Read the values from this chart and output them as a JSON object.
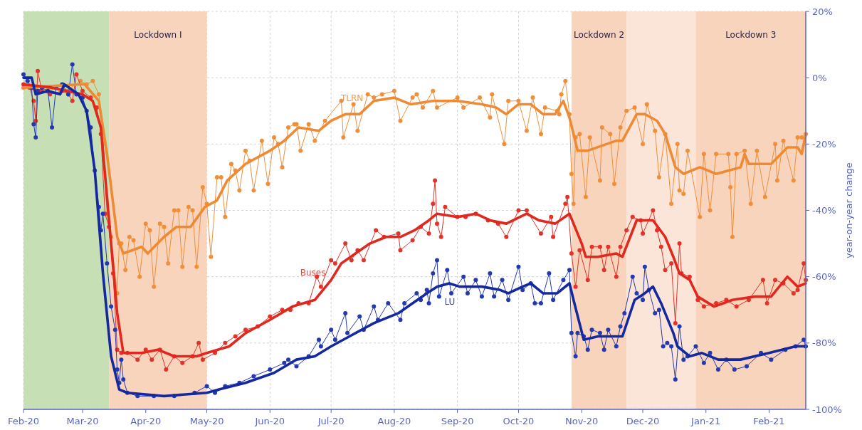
{
  "chart_data": {
    "type": "line",
    "ylabel": "year-on-year change",
    "ylim": [
      -100,
      20
    ],
    "yticks": [
      {
        "value": 20,
        "label": "20%"
      },
      {
        "value": 0,
        "label": "0%"
      },
      {
        "value": -20,
        "label": "-20%"
      },
      {
        "value": -40,
        "label": "-40%"
      },
      {
        "value": -60,
        "label": "-60%"
      },
      {
        "value": -80,
        "label": "-80%"
      },
      {
        "value": -100,
        "label": "-100%"
      }
    ],
    "xlim": [
      "2020-02-01",
      "2021-02-19"
    ],
    "xticks": [
      {
        "value": "2020-02-01",
        "label": "Feb-20"
      },
      {
        "value": "2020-03-01",
        "label": "Mar-20"
      },
      {
        "value": "2020-04-01",
        "label": "Apr-20"
      },
      {
        "value": "2020-05-01",
        "label": "May-20"
      },
      {
        "value": "2020-06-01",
        "label": "Jun-20"
      },
      {
        "value": "2020-07-01",
        "label": "Jul-20"
      },
      {
        "value": "2020-08-01",
        "label": "Aug-20"
      },
      {
        "value": "2020-09-01",
        "label": "Sep-20"
      },
      {
        "value": "2020-10-01",
        "label": "Oct-20"
      },
      {
        "value": "2020-11-01",
        "label": "Nov-20"
      },
      {
        "value": "2020-12-01",
        "label": "Dec-20"
      },
      {
        "value": "2021-01-01",
        "label": "Jan-21"
      },
      {
        "value": "2021-02-01",
        "label": "Feb-21"
      }
    ],
    "grid": true,
    "bands": [
      {
        "axis": "x",
        "from": "2020-02-01",
        "to": "2020-03-14",
        "color": "#c6dfb4"
      },
      {
        "axis": "x",
        "from": "2020-03-14",
        "to": "2020-05-01",
        "label": "Lockdown I",
        "color": "#f8d4bd"
      },
      {
        "axis": "x",
        "from": "2020-10-27",
        "to": "2020-11-23",
        "label": "Lockdown 2",
        "color": "#f8d4bd"
      },
      {
        "axis": "x",
        "from": "2020-11-23",
        "to": "2020-12-27",
        "color": "#fbe5d8"
      },
      {
        "axis": "x",
        "from": "2020-12-27",
        "to": "2021-02-19",
        "label": "Lockdown 3",
        "color": "#f8d4bd"
      }
    ],
    "series": [
      {
        "color": "#ef8f3c",
        "marker": "circle",
        "x": [
          "2020-02-01",
          "2020-02-08",
          "2020-02-15",
          "2020-02-22",
          "2020-02-29",
          "2020-03-03",
          "2020-03-06",
          "2020-03-09",
          "2020-03-11",
          "2020-03-13",
          "2020-03-15",
          "2020-03-18",
          "2020-03-19",
          "2020-03-20",
          "2020-03-22",
          "2020-03-24",
          "2020-03-26",
          "2020-03-29",
          "2020-04-01",
          "2020-04-03",
          "2020-04-05",
          "2020-04-08",
          "2020-04-10",
          "2020-04-12",
          "2020-04-15",
          "2020-04-17",
          "2020-04-19",
          "2020-04-22",
          "2020-04-24",
          "2020-04-26",
          "2020-04-29",
          "2020-05-01",
          "2020-05-03",
          "2020-05-06",
          "2020-05-08",
          "2020-05-10",
          "2020-05-13",
          "2020-05-15",
          "2020-05-17",
          "2020-05-20",
          "2020-05-22",
          "2020-05-24",
          "2020-05-28",
          "2020-05-31",
          "2020-06-03",
          "2020-06-05",
          "2020-06-07",
          "2020-06-10",
          "2020-06-13",
          "2020-06-14",
          "2020-06-16",
          "2020-06-20",
          "2020-06-23",
          "2020-06-28",
          "2020-07-06",
          "2020-07-07",
          "2020-07-12",
          "2020-07-14",
          "2020-07-19",
          "2020-07-22",
          "2020-07-26",
          "2020-08-01",
          "2020-08-04",
          "2020-08-10",
          "2020-08-12",
          "2020-08-15",
          "2020-08-20",
          "2020-08-22",
          "2020-09-01",
          "2020-09-04",
          "2020-09-12",
          "2020-09-17",
          "2020-09-18",
          "2020-09-24",
          "2020-09-26",
          "2020-10-01",
          "2020-10-05",
          "2020-10-08",
          "2020-10-12",
          "2020-10-14",
          "2020-10-20",
          "2020-10-21",
          "2020-10-22",
          "2020-10-24",
          "2020-10-26",
          "2020-10-27",
          "2020-10-28",
          "2020-10-29",
          "2020-10-31",
          "2020-11-03",
          "2020-11-05",
          "2020-11-10",
          "2020-11-11",
          "2020-11-15",
          "2020-11-17",
          "2020-11-20",
          "2020-11-23",
          "2020-11-27",
          "2020-12-01",
          "2020-12-03",
          "2020-12-07",
          "2020-12-09",
          "2020-12-12",
          "2020-12-15",
          "2020-12-18",
          "2020-12-19",
          "2020-12-21",
          "2020-12-23",
          "2020-12-29",
          "2020-12-31",
          "2021-01-03",
          "2021-01-06",
          "2021-01-12",
          "2021-01-13",
          "2021-01-14",
          "2021-01-16",
          "2021-01-20",
          "2021-01-23",
          "2021-01-26",
          "2021-01-30",
          "2021-02-04",
          "2021-02-05",
          "2021-02-08",
          "2021-02-13",
          "2021-02-15",
          "2021-02-17",
          "2021-02-19"
        ],
        "values": [
          -3,
          -4,
          -3,
          -4,
          -1,
          -2,
          -1,
          -5,
          -20,
          -41,
          -48,
          -65,
          -50,
          -50,
          -58,
          -48,
          -49,
          -60,
          -44,
          -46,
          -63,
          -44,
          -45,
          -56,
          -40,
          -40,
          -57,
          -39,
          -40,
          -57,
          -33,
          -38,
          -54,
          -30,
          -30,
          -42,
          -26,
          -28,
          -34,
          -22,
          -25,
          -34,
          -19,
          -32,
          -18,
          -20,
          -27,
          -15,
          -14,
          -14,
          -22,
          -14,
          -19,
          -13,
          -7,
          -18,
          -8,
          -16,
          -5,
          -6,
          -5,
          -4,
          -13,
          -6,
          -5,
          -9,
          -4,
          -9,
          -6,
          -9,
          -6,
          -12,
          -5,
          -20,
          -7,
          -7,
          -16,
          -6,
          -17,
          -9,
          -10,
          -11,
          -5,
          -1,
          -11,
          -29,
          -38,
          -18,
          -17,
          -36,
          -18,
          -31,
          -15,
          -17,
          -32,
          -15,
          -10,
          -9,
          -20,
          -8,
          -16,
          -30,
          -17,
          -38,
          -20,
          -34,
          -35,
          -22,
          -42,
          -23,
          -40,
          -23,
          -23,
          -33,
          -48,
          -23,
          -22,
          -38,
          -22,
          -36,
          -20,
          -31,
          -19,
          -31,
          -18,
          -18,
          -17
        ]
      },
      {
        "name": "TLRN",
        "color": "#ee8a34",
        "marker": "none",
        "x": [
          "2020-02-01",
          "2020-02-29",
          "2020-03-02",
          "2020-03-09",
          "2020-03-13",
          "2020-03-18",
          "2020-03-21",
          "2020-03-30",
          "2020-04-02",
          "2020-04-10",
          "2020-04-16",
          "2020-04-23",
          "2020-04-30",
          "2020-05-06",
          "2020-05-11",
          "2020-05-20",
          "2020-06-01",
          "2020-06-08",
          "2020-06-15",
          "2020-06-25",
          "2020-07-01",
          "2020-07-08",
          "2020-07-15",
          "2020-07-22",
          "2020-08-01",
          "2020-08-09",
          "2020-08-20",
          "2020-09-01",
          "2020-09-13",
          "2020-09-20",
          "2020-09-25",
          "2020-10-01",
          "2020-10-07",
          "2020-10-13",
          "2020-10-19",
          "2020-10-23",
          "2020-10-26",
          "2020-10-30",
          "2020-11-04",
          "2020-11-18",
          "2020-11-21",
          "2020-11-28",
          "2020-12-02",
          "2020-12-08",
          "2020-12-12",
          "2020-12-17",
          "2020-12-21",
          "2020-12-29",
          "2021-01-06",
          "2021-01-18",
          "2021-01-20",
          "2021-01-22",
          "2021-01-30",
          "2021-02-02",
          "2021-02-10",
          "2021-02-15",
          "2021-02-17",
          "2021-02-19"
        ],
        "values": [
          -3,
          -2,
          -2,
          -7,
          -23,
          -48,
          -53,
          -51,
          -53,
          -48,
          -45,
          -45,
          -39,
          -37,
          -31,
          -26,
          -22,
          -19,
          -15,
          -16,
          -13,
          -11,
          -11,
          -7,
          -6,
          -8,
          -7,
          -7,
          -8,
          -9,
          -11,
          -8,
          -8,
          -11,
          -11,
          -7,
          -12,
          -22,
          -22,
          -19,
          -19,
          -11,
          -11,
          -13,
          -17,
          -27,
          -29,
          -27,
          -29,
          -27,
          -23,
          -26,
          -26,
          -26,
          -21,
          -21,
          -23,
          -17
        ]
      },
      {
        "color": "#e2332a",
        "marker": "circle",
        "x": [
          "2020-02-01",
          "2020-02-04",
          "2020-02-06",
          "2020-02-07",
          "2020-02-08",
          "2020-02-10",
          "2020-02-14",
          "2020-02-20",
          "2020-02-23",
          "2020-02-25",
          "2020-02-27",
          "2020-03-01",
          "2020-03-05",
          "2020-03-08",
          "2020-03-10",
          "2020-03-12",
          "2020-03-14",
          "2020-03-16",
          "2020-03-18",
          "2020-03-20",
          "2020-03-23",
          "2020-03-28",
          "2020-04-01",
          "2020-04-04",
          "2020-04-08",
          "2020-04-11",
          "2020-04-15",
          "2020-04-19",
          "2020-04-24",
          "2020-04-27",
          "2020-04-29",
          "2020-05-05",
          "2020-05-10",
          "2020-05-15",
          "2020-05-20",
          "2020-05-26",
          "2020-06-01",
          "2020-06-07",
          "2020-06-11",
          "2020-06-15",
          "2020-06-20",
          "2020-06-24",
          "2020-06-26",
          "2020-07-01",
          "2020-07-03",
          "2020-07-08",
          "2020-07-11",
          "2020-07-14",
          "2020-07-17",
          "2020-07-23",
          "2020-07-27",
          "2020-08-03",
          "2020-08-04",
          "2020-08-10",
          "2020-08-14",
          "2020-08-18",
          "2020-08-20",
          "2020-08-21",
          "2020-08-22",
          "2020-08-24",
          "2020-08-26",
          "2020-09-01",
          "2020-09-05",
          "2020-09-10",
          "2020-09-16",
          "2020-09-21",
          "2020-09-25",
          "2020-10-01",
          "2020-10-05",
          "2020-10-12",
          "2020-10-17",
          "2020-10-18",
          "2020-10-24",
          "2020-10-25",
          "2020-10-27",
          "2020-10-29",
          "2020-10-31",
          "2020-11-04",
          "2020-11-06",
          "2020-11-10",
          "2020-11-12",
          "2020-11-14",
          "2020-11-18",
          "2020-11-20",
          "2020-11-23",
          "2020-11-26",
          "2020-11-30",
          "2020-12-01",
          "2020-12-06",
          "2020-12-08",
          "2020-12-10",
          "2020-12-12",
          "2020-12-15",
          "2020-12-17",
          "2020-12-19",
          "2020-12-20",
          "2020-12-24",
          "2020-12-28",
          "2020-12-31",
          "2021-01-06",
          "2021-01-11",
          "2021-01-16",
          "2021-01-22",
          "2021-01-29",
          "2021-01-31",
          "2021-02-04",
          "2021-02-08",
          "2021-02-13",
          "2021-02-15",
          "2021-02-18",
          "2021-02-19"
        ],
        "values": [
          -2,
          -3,
          -7,
          -13,
          2,
          -4,
          -5,
          -4,
          -5,
          -7,
          1,
          -4,
          -6,
          -9,
          -17,
          -41,
          -45,
          -59,
          -82,
          -83,
          -83,
          -85,
          -82,
          -85,
          -82,
          -88,
          -84,
          -86,
          -84,
          -80,
          -85,
          -83,
          -80,
          -78,
          -76,
          -75,
          -72,
          -70,
          -70,
          -68,
          -68,
          -60,
          -63,
          -55,
          -56,
          -50,
          -55,
          -52,
          -55,
          -46,
          -48,
          -47,
          -52,
          -49,
          -45,
          -47,
          -38,
          -31,
          -44,
          -48,
          -39,
          -42,
          -42,
          -41,
          -43,
          -44,
          -48,
          -40,
          -40,
          -47,
          -42,
          -48,
          -38,
          -36,
          -53,
          -63,
          -52,
          -61,
          -51,
          -51,
          -58,
          -51,
          -60,
          -51,
          -46,
          -42,
          -43,
          -47,
          -40,
          -46,
          -51,
          -58,
          -56,
          -74,
          -50,
          -59,
          -60,
          -67,
          -69,
          -68,
          -67,
          -69,
          -67,
          -61,
          -68,
          -61,
          -62,
          -65,
          -64,
          -56,
          -61
        ]
      },
      {
        "name": "Buses",
        "color": "#e0281e",
        "marker": "none",
        "x": [
          "2020-02-01",
          "2020-02-15",
          "2020-03-01",
          "2020-03-06",
          "2020-03-10",
          "2020-03-14",
          "2020-03-18",
          "2020-03-21",
          "2020-03-30",
          "2020-04-07",
          "2020-04-15",
          "2020-04-26",
          "2020-05-01",
          "2020-05-12",
          "2020-05-20",
          "2020-06-01",
          "2020-06-12",
          "2020-06-23",
          "2020-07-01",
          "2020-07-06",
          "2020-07-13",
          "2020-07-20",
          "2020-07-28",
          "2020-08-04",
          "2020-08-11",
          "2020-08-18",
          "2020-08-22",
          "2020-09-01",
          "2020-09-10",
          "2020-09-17",
          "2020-09-25",
          "2020-10-05",
          "2020-10-11",
          "2020-10-19",
          "2020-10-26",
          "2020-11-01",
          "2020-11-03",
          "2020-11-09",
          "2020-11-18",
          "2020-11-21",
          "2020-11-28",
          "2020-12-06",
          "2020-12-12",
          "2020-12-16",
          "2020-12-19",
          "2020-12-24",
          "2020-12-28",
          "2021-01-05",
          "2021-01-14",
          "2021-01-25",
          "2021-02-02",
          "2021-02-10",
          "2021-02-15",
          "2021-02-19"
        ],
        "values": [
          -2,
          -3,
          -5,
          -7,
          -15,
          -43,
          -71,
          -83,
          -83,
          -82,
          -84,
          -84,
          -83,
          -81,
          -77,
          -73,
          -69,
          -67,
          -61,
          -56,
          -53,
          -50,
          -48,
          -48,
          -46,
          -43,
          -41,
          -42,
          -41,
          -43,
          -44,
          -41,
          -43,
          -44,
          -41,
          -50,
          -54,
          -54,
          -53,
          -54,
          -43,
          -43,
          -48,
          -54,
          -59,
          -61,
          -66,
          -69,
          -67,
          -66,
          -66,
          -60,
          -63,
          -62
        ]
      },
      {
        "color": "#2438b0",
        "marker": "circle",
        "x": [
          "2020-02-01",
          "2020-02-03",
          "2020-02-05",
          "2020-02-06",
          "2020-02-07",
          "2020-02-08",
          "2020-02-10",
          "2020-02-13",
          "2020-02-15",
          "2020-02-17",
          "2020-02-20",
          "2020-02-23",
          "2020-02-25",
          "2020-02-27",
          "2020-03-01",
          "2020-03-03",
          "2020-03-05",
          "2020-03-07",
          "2020-03-09",
          "2020-03-10",
          "2020-03-11",
          "2020-03-13",
          "2020-03-15",
          "2020-03-17",
          "2020-03-18",
          "2020-03-19",
          "2020-03-20",
          "2020-03-21",
          "2020-03-23",
          "2020-03-28",
          "2020-04-05",
          "2020-04-15",
          "2020-04-25",
          "2020-05-01",
          "2020-05-05",
          "2020-05-10",
          "2020-05-17",
          "2020-05-24",
          "2020-06-01",
          "2020-06-08",
          "2020-06-10",
          "2020-06-14",
          "2020-06-20",
          "2020-06-25",
          "2020-06-26",
          "2020-07-01",
          "2020-07-03",
          "2020-07-08",
          "2020-07-09",
          "2020-07-15",
          "2020-07-17",
          "2020-07-22",
          "2020-07-24",
          "2020-07-29",
          "2020-08-04",
          "2020-08-06",
          "2020-08-12",
          "2020-08-14",
          "2020-08-17",
          "2020-08-18",
          "2020-08-20",
          "2020-08-22",
          "2020-08-23",
          "2020-08-27",
          "2020-08-29",
          "2020-09-04",
          "2020-09-06",
          "2020-09-10",
          "2020-09-13",
          "2020-09-17",
          "2020-09-19",
          "2020-09-23",
          "2020-09-26",
          "2020-10-01",
          "2020-10-03",
          "2020-10-07",
          "2020-10-09",
          "2020-10-12",
          "2020-10-16",
          "2020-10-18",
          "2020-10-23",
          "2020-10-26",
          "2020-10-27",
          "2020-10-29",
          "2020-10-30",
          "2020-11-02",
          "2020-11-04",
          "2020-11-06",
          "2020-11-10",
          "2020-11-12",
          "2020-11-14",
          "2020-11-18",
          "2020-11-20",
          "2020-11-22",
          "2020-11-26",
          "2020-11-28",
          "2020-12-01",
          "2020-12-02",
          "2020-12-04",
          "2020-12-07",
          "2020-12-09",
          "2020-12-11",
          "2020-12-13",
          "2020-12-15",
          "2020-12-17",
          "2020-12-19",
          "2020-12-21",
          "2020-12-23",
          "2020-12-27",
          "2020-12-31",
          "2021-01-03",
          "2021-01-07",
          "2021-01-11",
          "2021-01-15",
          "2021-01-21",
          "2021-01-28",
          "2021-02-02",
          "2021-02-09",
          "2021-02-14",
          "2021-02-18",
          "2021-02-19"
        ],
        "values": [
          1,
          -1,
          -3,
          -14,
          -18,
          -4,
          -3,
          -4,
          -15,
          -3,
          -2,
          -5,
          4,
          -5,
          -6,
          -10,
          -15,
          -28,
          -39,
          -46,
          -41,
          -56,
          -69,
          -76,
          -88,
          -92,
          -85,
          -91,
          -95,
          -96,
          -96,
          -96,
          -95,
          -93,
          -95,
          -93,
          -92,
          -90,
          -88,
          -86,
          -85,
          -87,
          -84,
          -79,
          -81,
          -76,
          -79,
          -71,
          -77,
          -72,
          -76,
          -69,
          -73,
          -68,
          -73,
          -68,
          -65,
          -67,
          -64,
          -68,
          -59,
          -55,
          -66,
          -58,
          -65,
          -60,
          -65,
          -61,
          -66,
          -59,
          -66,
          -61,
          -67,
          -57,
          -64,
          -62,
          -68,
          -68,
          -59,
          -67,
          -61,
          -58,
          -77,
          -84,
          -77,
          -78,
          -82,
          -76,
          -77,
          -82,
          -76,
          -81,
          -75,
          -71,
          -60,
          -65,
          -67,
          -57,
          -64,
          -71,
          -70,
          -81,
          -80,
          -81,
          -91,
          -75,
          -85,
          -84,
          -81,
          -86,
          -83,
          -88,
          -85,
          -88,
          -87,
          -83,
          -85,
          -82,
          -81,
          -79,
          -81
        ]
      },
      {
        "name": "LU",
        "color": "#1428a0",
        "marker": "none",
        "x": [
          "2020-02-01",
          "2020-02-05",
          "2020-02-07",
          "2020-02-13",
          "2020-02-19",
          "2020-02-21",
          "2020-02-28",
          "2020-03-03",
          "2020-03-07",
          "2020-03-11",
          "2020-03-15",
          "2020-03-19",
          "2020-03-23",
          "2020-04-10",
          "2020-05-01",
          "2020-05-07",
          "2020-05-20",
          "2020-06-03",
          "2020-06-14",
          "2020-06-23",
          "2020-07-01",
          "2020-07-10",
          "2020-07-22",
          "2020-08-03",
          "2020-08-10",
          "2020-08-17",
          "2020-08-22",
          "2020-08-28",
          "2020-09-02",
          "2020-09-13",
          "2020-09-22",
          "2020-09-26",
          "2020-10-03",
          "2020-10-07",
          "2020-10-13",
          "2020-10-20",
          "2020-10-26",
          "2020-10-28",
          "2020-11-02",
          "2020-11-09",
          "2020-11-21",
          "2020-11-27",
          "2020-12-02",
          "2020-12-06",
          "2020-12-10",
          "2020-12-16",
          "2020-12-18",
          "2020-12-24",
          "2020-12-30",
          "2021-01-07",
          "2021-01-18",
          "2021-02-01",
          "2021-02-14",
          "2021-02-19"
        ],
        "values": [
          0,
          0,
          -5,
          -4,
          -5,
          -2,
          -5,
          -10,
          -28,
          -59,
          -84,
          -94,
          -95,
          -96,
          -95,
          -94,
          -92,
          -89,
          -85,
          -84,
          -81,
          -78,
          -74,
          -71,
          -68,
          -65,
          -63,
          -62,
          -63,
          -63,
          -64,
          -65,
          -63,
          -62,
          -65,
          -65,
          -62,
          -67,
          -79,
          -78,
          -78,
          -67,
          -65,
          -63,
          -68,
          -77,
          -81,
          -84,
          -83,
          -85,
          -85,
          -83,
          -81,
          -81
        ]
      }
    ]
  }
}
